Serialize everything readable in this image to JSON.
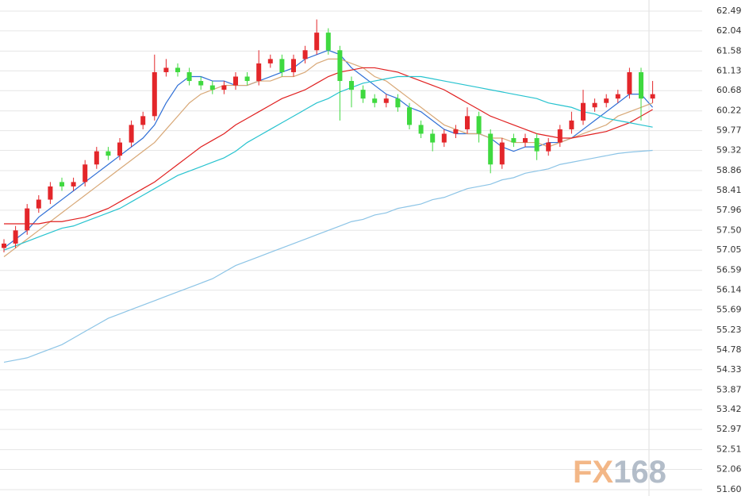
{
  "chart_data": {
    "type": "candlestick",
    "up_color": "#e3262a",
    "down_color": "#3fd93f",
    "ylim": [
      51.6,
      62.49
    ],
    "yticks": [
      {
        "value": 51.6,
        "label": "51.60"
      },
      52.06,
      52.51,
      52.97,
      53.42,
      53.87,
      54.33,
      54.78,
      55.23,
      55.69,
      56.14,
      56.59,
      57.05,
      {
        "value": 57.5,
        "label": "57.50"
      },
      57.96,
      58.41,
      58.86,
      59.32,
      59.77,
      60.22,
      60.68,
      61.13,
      61.58,
      62.04,
      62.49
    ],
    "grid": true,
    "open": [
      57.1,
      57.2,
      57.5,
      58.0,
      58.2,
      58.6,
      58.5,
      58.6,
      59.0,
      59.3,
      59.2,
      59.5,
      59.9,
      60.1,
      61.1,
      61.2,
      61.1,
      60.9,
      60.8,
      60.7,
      60.8,
      61.0,
      60.9,
      61.3,
      61.4,
      61.1,
      61.4,
      61.6,
      62.0,
      61.6,
      60.9,
      60.7,
      60.5,
      60.4,
      60.5,
      60.3,
      59.9,
      59.7,
      59.5,
      59.7,
      59.8,
      60.1,
      59.7,
      59.0,
      59.6,
      59.5,
      59.6,
      59.3,
      59.5,
      59.8,
      60.0,
      60.3,
      60.4,
      60.5,
      60.6,
      61.1,
      60.5
    ],
    "high": [
      57.3,
      57.6,
      58.1,
      58.3,
      58.6,
      58.7,
      58.7,
      59.1,
      59.4,
      59.4,
      59.6,
      60.0,
      60.2,
      61.5,
      61.4,
      61.3,
      61.2,
      61.0,
      60.9,
      60.9,
      61.1,
      61.1,
      61.6,
      61.5,
      61.5,
      61.5,
      61.7,
      62.3,
      62.1,
      61.7,
      61.0,
      60.8,
      60.6,
      60.6,
      60.6,
      60.4,
      60.0,
      59.8,
      59.8,
      59.9,
      60.3,
      60.2,
      59.8,
      59.6,
      59.7,
      59.7,
      59.7,
      59.6,
      59.9,
      60.2,
      60.7,
      60.5,
      60.6,
      60.7,
      61.2,
      61.2,
      60.9
    ],
    "low": [
      57.0,
      57.1,
      57.4,
      57.9,
      58.1,
      58.4,
      58.4,
      58.5,
      58.9,
      59.1,
      59.1,
      59.4,
      59.8,
      60.0,
      61.0,
      61.0,
      60.8,
      60.7,
      60.6,
      60.6,
      60.7,
      60.8,
      60.8,
      61.2,
      61.0,
      61.0,
      61.3,
      61.5,
      61.5,
      60.0,
      60.3,
      60.4,
      60.3,
      60.3,
      60.2,
      59.8,
      59.6,
      59.3,
      59.4,
      59.6,
      59.7,
      59.5,
      58.8,
      58.9,
      59.4,
      59.4,
      59.1,
      59.2,
      59.4,
      59.7,
      59.9,
      60.2,
      60.3,
      60.4,
      60.5,
      60.0,
      60.4
    ],
    "close": [
      57.2,
      57.5,
      58.0,
      58.2,
      58.5,
      58.5,
      58.6,
      59.0,
      59.3,
      59.2,
      59.5,
      59.9,
      60.1,
      61.1,
      61.2,
      61.1,
      60.9,
      60.8,
      60.7,
      60.8,
      61.0,
      60.9,
      61.3,
      61.4,
      61.1,
      61.4,
      61.6,
      62.0,
      61.6,
      60.9,
      60.7,
      60.5,
      60.4,
      60.5,
      60.3,
      59.9,
      59.7,
      59.5,
      59.7,
      59.8,
      60.1,
      59.7,
      59.0,
      59.5,
      59.5,
      59.6,
      59.3,
      59.5,
      59.8,
      60.0,
      60.4,
      60.4,
      60.5,
      60.6,
      61.1,
      60.5,
      60.6
    ],
    "lines": [
      {
        "color": "#2f6fd6",
        "values": [
          57.1,
          57.3,
          57.5,
          57.8,
          58.0,
          58.2,
          58.4,
          58.6,
          58.8,
          59.0,
          59.2,
          59.4,
          59.6,
          59.9,
          60.4,
          60.8,
          61.0,
          61.0,
          60.9,
          60.9,
          60.8,
          60.8,
          60.9,
          61.0,
          61.1,
          61.2,
          61.4,
          61.5,
          61.6,
          61.5,
          61.2,
          61.0,
          60.8,
          60.6,
          60.5,
          60.3,
          60.2,
          60.0,
          59.8,
          59.7,
          59.7,
          59.7,
          59.6,
          59.4,
          59.3,
          59.4,
          59.4,
          59.5,
          59.5,
          59.6,
          59.8,
          60.0,
          60.2,
          60.4,
          60.6,
          60.6,
          60.3
        ]
      },
      {
        "color": "#d8a877",
        "values": [
          56.9,
          57.1,
          57.3,
          57.5,
          57.7,
          57.9,
          58.1,
          58.3,
          58.5,
          58.7,
          58.9,
          59.1,
          59.3,
          59.5,
          59.8,
          60.1,
          60.4,
          60.6,
          60.7,
          60.8,
          60.8,
          60.8,
          60.9,
          60.9,
          61.0,
          61.0,
          61.1,
          61.3,
          61.4,
          61.4,
          61.3,
          61.2,
          61.0,
          60.9,
          60.7,
          60.5,
          60.3,
          60.1,
          59.9,
          59.8,
          59.7,
          59.7,
          59.6,
          59.6,
          59.5,
          59.5,
          59.5,
          59.4,
          59.5,
          59.6,
          59.7,
          59.8,
          59.9,
          60.1,
          60.2,
          60.3,
          60.4
        ]
      },
      {
        "color": "#e01f1f",
        "values": [
          57.65,
          57.65,
          57.65,
          57.65,
          57.7,
          57.7,
          57.75,
          57.8,
          57.9,
          58.0,
          58.15,
          58.3,
          58.45,
          58.6,
          58.8,
          59.0,
          59.2,
          59.4,
          59.55,
          59.7,
          59.9,
          60.05,
          60.2,
          60.35,
          60.5,
          60.6,
          60.7,
          60.85,
          61.0,
          61.1,
          61.15,
          61.2,
          61.2,
          61.15,
          61.1,
          61.0,
          60.9,
          60.8,
          60.7,
          60.55,
          60.4,
          60.25,
          60.1,
          60.0,
          59.9,
          59.8,
          59.7,
          59.65,
          59.6,
          59.6,
          59.65,
          59.7,
          59.75,
          59.85,
          59.95,
          60.1,
          60.25
        ]
      },
      {
        "color": "#27c3cf",
        "values": [
          57.05,
          57.15,
          57.25,
          57.35,
          57.45,
          57.55,
          57.6,
          57.7,
          57.8,
          57.9,
          58.0,
          58.15,
          58.3,
          58.45,
          58.6,
          58.75,
          58.85,
          58.95,
          59.05,
          59.15,
          59.3,
          59.5,
          59.65,
          59.8,
          59.95,
          60.1,
          60.25,
          60.4,
          60.5,
          60.65,
          60.75,
          60.85,
          60.9,
          60.95,
          61.0,
          61.0,
          61.0,
          60.95,
          60.9,
          60.85,
          60.8,
          60.75,
          60.7,
          60.65,
          60.6,
          60.55,
          60.5,
          60.4,
          60.35,
          60.3,
          60.2,
          60.15,
          60.05,
          60.0,
          59.95,
          59.9,
          59.85
        ]
      },
      {
        "color": "#8cc4e6",
        "values": [
          54.5,
          54.55,
          54.6,
          54.7,
          54.8,
          54.9,
          55.05,
          55.2,
          55.35,
          55.5,
          55.6,
          55.7,
          55.8,
          55.9,
          56.0,
          56.1,
          56.2,
          56.3,
          56.4,
          56.55,
          56.7,
          56.8,
          56.9,
          57.0,
          57.1,
          57.2,
          57.3,
          57.4,
          57.5,
          57.6,
          57.7,
          57.75,
          57.85,
          57.9,
          58.0,
          58.05,
          58.1,
          58.2,
          58.25,
          58.35,
          58.45,
          58.5,
          58.55,
          58.65,
          58.7,
          58.8,
          58.85,
          58.9,
          59.0,
          59.05,
          59.1,
          59.15,
          59.2,
          59.25,
          59.28,
          59.3,
          59.32
        ]
      }
    ],
    "watermark": [
      "FX",
      "168"
    ]
  }
}
